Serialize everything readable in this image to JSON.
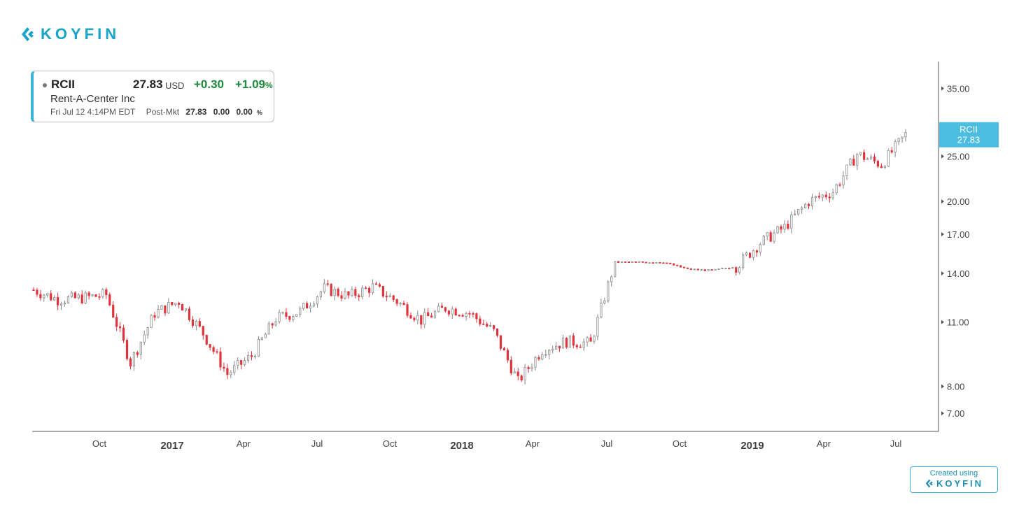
{
  "brand": {
    "name": "KOYFIN",
    "accent": "#1aa3c8"
  },
  "quote": {
    "ticker": "RCII",
    "price": "27.83",
    "currency": "USD",
    "change": "+0.30",
    "change_pct": "+1.09",
    "pct_sign": "%",
    "company": "Rent-A-Center Inc",
    "timestamp": "Fri Jul 12 4:14PM EDT",
    "session": "Post-Mkt",
    "post_price": "27.83",
    "post_change": "0.00",
    "post_pct": "0.00",
    "post_pct_sign": "%"
  },
  "footer": {
    "created_label": "Created using",
    "brand": "KOYFIN"
  },
  "chart_data": {
    "type": "line",
    "title": "",
    "y_scale": "log",
    "ylim": [
      6.4,
      40
    ],
    "y_ticks": [
      "35.00",
      "25.00",
      "20.00",
      "17.00",
      "14.00",
      "11.00",
      "8.00",
      "7.00"
    ],
    "x_tick_labels": [
      "Oct",
      "2017",
      "Apr",
      "Jul",
      "Oct",
      "2018",
      "Apr",
      "Jul",
      "Oct",
      "2019",
      "Apr",
      "Jul"
    ],
    "x_tick_bold": [
      false,
      true,
      false,
      false,
      false,
      true,
      false,
      false,
      false,
      true,
      false,
      false
    ],
    "last_price_label": {
      "ticker": "RCII",
      "value": "27.83",
      "color": "#4bbde0"
    },
    "colors": {
      "up": "#8a8a8a",
      "down": "#e0343c",
      "axis": "#555555"
    },
    "series": [
      {
        "x": [
          "2016-07",
          "2016-08",
          "2016-09",
          "2016-10",
          "2016-11",
          "2016-12",
          "2017-01",
          "2017-02",
          "2017-03",
          "2017-04",
          "2017-05",
          "2017-06",
          "2017-07",
          "2017-08",
          "2017-09",
          "2017-10",
          "2017-11",
          "2017-12",
          "2018-01",
          "2018-02",
          "2018-03",
          "2018-04",
          "2018-05",
          "2018-06",
          "2018-07",
          "2018-08",
          "2018-09",
          "2018-10",
          "2018-11",
          "2018-12",
          "2019-01",
          "2019-02",
          "2019-03",
          "2019-04",
          "2019-05",
          "2019-06",
          "2019-07"
        ],
        "y": [
          12.9,
          12.3,
          12.4,
          12.6,
          9.0,
          11.5,
          12.2,
          10.4,
          8.5,
          9.3,
          11.2,
          11.6,
          13.0,
          12.5,
          13.1,
          12.2,
          11.1,
          11.8,
          11.5,
          10.5,
          8.2,
          9.6,
          10.0,
          9.9,
          14.8,
          14.8,
          14.8,
          14.3,
          14.2,
          14.5,
          16.3,
          17.6,
          20.0,
          21.0,
          25.3,
          24.0,
          27.83
        ]
      }
    ]
  }
}
